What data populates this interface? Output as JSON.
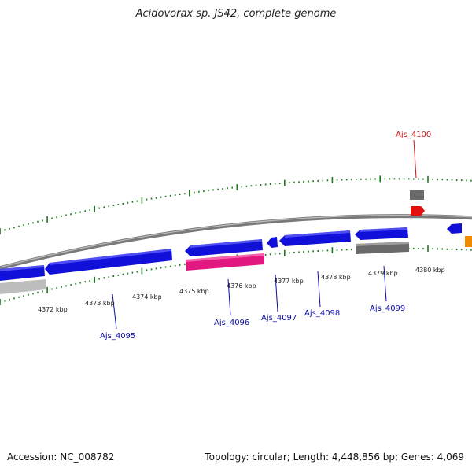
{
  "title": "Acidovorax sp. JS42, complete genome",
  "footer": {
    "accession": "Accession: NC_008782",
    "topology": "Topology: circular; Length: 4,448,856 bp; Genes: 4,069"
  },
  "colors": {
    "backbone": "#8a8a8a",
    "ticks": "#1f7a1f",
    "forward_gene": "#1010d8",
    "pseudo_gene": "#6a6a6a",
    "rna_gene": "#e0187f",
    "highlight_gene": "#e01010",
    "other_gene": "#f08a00",
    "label_blue": "#0a0aa8",
    "label_red": "#cc1111"
  },
  "kbp_labels": [
    "4372 kbp",
    "4373 kbp",
    "4374 kbp",
    "4375 kbp",
    "4376 kbp",
    "4377 kbp",
    "4378 kbp",
    "4379 kbp",
    "4380 kbp"
  ],
  "gene_labels": [
    "Ajs_4095",
    "Ajs_4096",
    "Ajs_4097",
    "Ajs_4098",
    "Ajs_4099",
    "Ajs_4100"
  ]
}
